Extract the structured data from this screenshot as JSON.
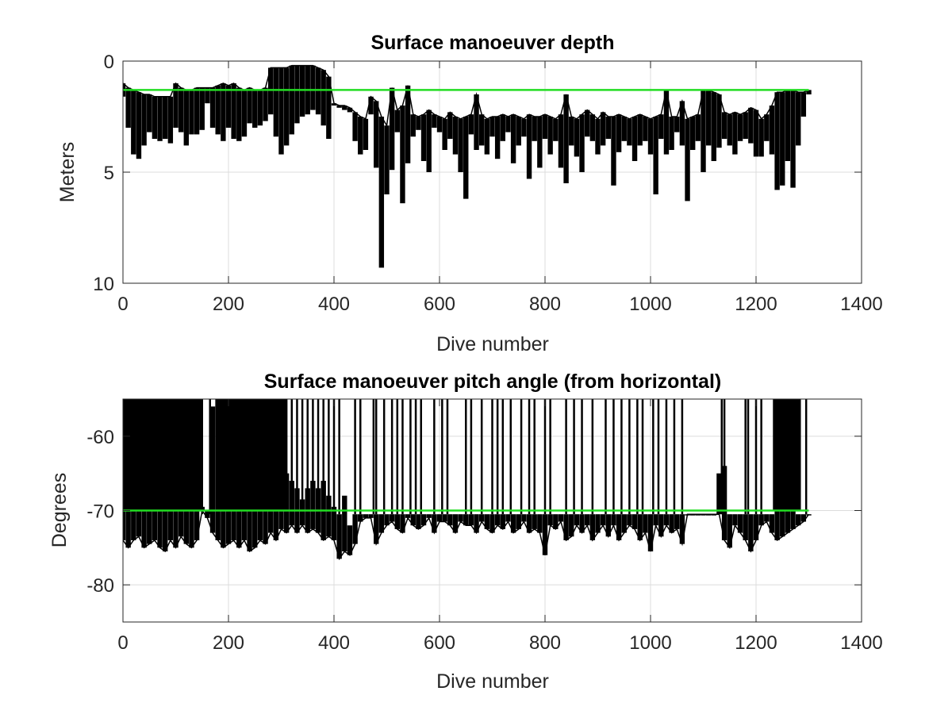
{
  "chart_data": [
    {
      "type": "line",
      "title": "Surface manoeuver depth",
      "xlabel": "Dive number",
      "ylabel": "Meters",
      "xlim": [
        0,
        1400
      ],
      "ylim": [
        0,
        10
      ],
      "y_reversed": true,
      "grid": true,
      "xticks": [
        "0",
        "200",
        "400",
        "600",
        "800",
        "1000",
        "1200",
        "1400"
      ],
      "yticks": [
        "0",
        "5",
        "10"
      ],
      "xtick_values": [
        0,
        200,
        400,
        600,
        800,
        1000,
        1200,
        1400
      ],
      "ytick_values": [
        0,
        5,
        10
      ],
      "line_color": "#000000",
      "threshold": {
        "value": 1.3,
        "x_range": [
          0,
          1300
        ],
        "color": "#22dd22"
      },
      "x": [
        0,
        10,
        20,
        30,
        40,
        50,
        60,
        70,
        80,
        90,
        100,
        110,
        120,
        130,
        140,
        150,
        160,
        170,
        180,
        190,
        200,
        210,
        220,
        230,
        240,
        250,
        260,
        270,
        280,
        290,
        300,
        310,
        320,
        330,
        340,
        350,
        360,
        370,
        380,
        390,
        400,
        410,
        420,
        430,
        440,
        450,
        460,
        470,
        480,
        490,
        500,
        510,
        520,
        530,
        540,
        550,
        560,
        570,
        580,
        590,
        600,
        610,
        620,
        630,
        640,
        650,
        660,
        670,
        680,
        690,
        700,
        710,
        720,
        730,
        740,
        750,
        760,
        770,
        780,
        790,
        800,
        810,
        820,
        830,
        840,
        850,
        860,
        870,
        880,
        890,
        900,
        910,
        920,
        930,
        940,
        950,
        960,
        970,
        980,
        990,
        1000,
        1010,
        1020,
        1030,
        1040,
        1050,
        1060,
        1070,
        1080,
        1090,
        1100,
        1110,
        1120,
        1130,
        1140,
        1150,
        1160,
        1170,
        1180,
        1190,
        1200,
        1210,
        1220,
        1230,
        1240,
        1250,
        1260,
        1270,
        1280,
        1290,
        1300
      ],
      "low": [
        1.0,
        1.2,
        1.3,
        1.4,
        1.5,
        1.5,
        1.6,
        1.6,
        1.6,
        1.6,
        1.0,
        1.2,
        1.3,
        1.3,
        1.2,
        1.2,
        1.2,
        1.2,
        1.1,
        1.0,
        1.1,
        1.0,
        1.2,
        1.3,
        1.2,
        1.3,
        1.3,
        1.2,
        0.3,
        0.3,
        0.3,
        0.3,
        0.2,
        0.2,
        0.2,
        0.2,
        0.2,
        0.3,
        0.4,
        0.7,
        1.9,
        2.0,
        2.0,
        2.1,
        2.3,
        2.5,
        2.6,
        1.6,
        1.8,
        2.5,
        2.9,
        1.2,
        2.2,
        2.0,
        1.1,
        2.4,
        2.5,
        2.4,
        2.2,
        2.4,
        2.5,
        2.6,
        2.3,
        2.5,
        2.6,
        2.5,
        2.4,
        1.5,
        2.4,
        2.6,
        2.5,
        2.5,
        2.4,
        2.5,
        2.4,
        2.5,
        2.6,
        2.4,
        2.5,
        2.5,
        2.4,
        2.5,
        2.6,
        2.4,
        1.5,
        2.5,
        2.6,
        2.4,
        2.2,
        2.4,
        2.6,
        2.3,
        2.5,
        2.5,
        2.4,
        2.5,
        2.6,
        2.5,
        2.4,
        2.5,
        2.6,
        2.5,
        2.4,
        1.3,
        2.5,
        2.5,
        1.8,
        2.6,
        2.5,
        2.4,
        1.3,
        1.3,
        1.4,
        1.5,
        2.3,
        2.4,
        2.3,
        2.4,
        2.3,
        2.1,
        2.2,
        2.6,
        2.4,
        2.0,
        1.4,
        1.4,
        1.3,
        1.3,
        1.4,
        1.4,
        1.3
      ],
      "high": [
        1.6,
        3.0,
        4.2,
        4.4,
        3.8,
        3.2,
        3.5,
        3.6,
        3.5,
        3.7,
        3.0,
        3.2,
        3.8,
        3.3,
        3.3,
        3.1,
        1.9,
        3.0,
        3.3,
        3.6,
        3.0,
        3.5,
        3.6,
        3.4,
        2.8,
        3.0,
        2.9,
        2.7,
        2.4,
        3.4,
        4.2,
        3.8,
        3.3,
        2.8,
        2.5,
        2.4,
        2.2,
        2.4,
        2.9,
        3.5,
        2.0,
        2.1,
        2.2,
        2.3,
        3.6,
        4.2,
        4.0,
        2.4,
        4.8,
        9.3,
        6.0,
        4.9,
        3.2,
        6.4,
        4.6,
        3.4,
        3.1,
        4.5,
        5.0,
        3.0,
        3.2,
        4.0,
        3.5,
        4.2,
        5.0,
        6.2,
        3.3,
        4.0,
        3.8,
        4.2,
        3.4,
        4.4,
        3.6,
        3.2,
        4.6,
        3.8,
        3.4,
        5.3,
        3.6,
        4.8,
        3.5,
        4.2,
        3.6,
        4.8,
        5.5,
        3.8,
        4.3,
        5.0,
        3.4,
        3.6,
        4.2,
        3.8,
        3.5,
        5.6,
        4.1,
        3.6,
        3.8,
        4.5,
        3.8,
        3.6,
        4.2,
        6.0,
        3.5,
        4.2,
        4.0,
        3.2,
        3.8,
        6.3,
        4.0,
        3.6,
        5.0,
        3.8,
        4.5,
        3.9,
        3.5,
        3.8,
        4.2,
        3.6,
        3.5,
        3.7,
        4.3,
        4.3,
        3.6,
        4.2,
        5.8,
        5.6,
        4.5,
        5.7,
        3.8,
        2.5,
        1.5
      ]
    },
    {
      "type": "line",
      "title": "Surface manoeuver pitch angle (from horizontal)",
      "xlabel": "Dive number",
      "ylabel": "Degrees",
      "xlim": [
        0,
        1400
      ],
      "ylim": [
        -85,
        -55
      ],
      "grid": true,
      "xticks": [
        "0",
        "200",
        "400",
        "600",
        "800",
        "1000",
        "1200",
        "1400"
      ],
      "yticks": [
        "-60",
        "-70",
        "-80"
      ],
      "xtick_values": [
        0,
        200,
        400,
        600,
        800,
        1000,
        1200,
        1400
      ],
      "ytick_values": [
        -60,
        -70,
        -80
      ],
      "line_color": "#000000",
      "threshold": {
        "value": -70,
        "x_range": [
          0,
          1300
        ],
        "color": "#22dd22"
      },
      "dense_regions": [
        {
          "x_range": [
            0,
            150
          ],
          "y_range": [
            -55,
            -70
          ]
        },
        {
          "x_range": [
            175,
            310
          ],
          "y_range": [
            -55,
            -70
          ]
        },
        {
          "x_range": [
            1232,
            1285
          ],
          "y_range": [
            -55,
            -70
          ]
        }
      ],
      "spikes": [
        150,
        165,
        310,
        320,
        330,
        340,
        350,
        360,
        370,
        380,
        390,
        400,
        410,
        440,
        450,
        475,
        480,
        495,
        510,
        520,
        530,
        545,
        555,
        565,
        590,
        605,
        615,
        650,
        660,
        680,
        700,
        710,
        720,
        735,
        755,
        770,
        780,
        800,
        810,
        840,
        855,
        870,
        890,
        915,
        930,
        945,
        960,
        975,
        985,
        1005,
        1015,
        1030,
        1045,
        1060,
        1135,
        1140,
        1180,
        1185,
        1200,
        1210,
        1295
      ],
      "x": [
        0,
        10,
        20,
        30,
        40,
        50,
        60,
        70,
        80,
        90,
        100,
        110,
        120,
        130,
        140,
        150,
        160,
        170,
        180,
        190,
        200,
        210,
        220,
        230,
        240,
        250,
        260,
        270,
        280,
        290,
        300,
        310,
        320,
        330,
        340,
        350,
        360,
        370,
        380,
        390,
        400,
        410,
        420,
        430,
        440,
        450,
        460,
        470,
        480,
        490,
        500,
        510,
        520,
        530,
        540,
        550,
        560,
        570,
        580,
        590,
        600,
        610,
        620,
        630,
        640,
        650,
        660,
        670,
        680,
        690,
        700,
        710,
        720,
        730,
        740,
        750,
        760,
        770,
        780,
        790,
        800,
        810,
        820,
        830,
        840,
        850,
        860,
        870,
        880,
        890,
        900,
        910,
        920,
        930,
        940,
        950,
        960,
        970,
        980,
        990,
        1000,
        1010,
        1020,
        1030,
        1040,
        1050,
        1060,
        1070,
        1080,
        1090,
        1100,
        1110,
        1120,
        1130,
        1140,
        1150,
        1160,
        1170,
        1180,
        1190,
        1200,
        1210,
        1220,
        1230,
        1240,
        1250,
        1260,
        1270,
        1280,
        1290,
        1300
      ],
      "low": [
        -74.0,
        -75.0,
        -74.0,
        -73.5,
        -75.0,
        -74.5,
        -74.0,
        -75.0,
        -75.5,
        -74.0,
        -75.0,
        -73.5,
        -74.5,
        -75.0,
        -74.0,
        -70.0,
        -71.0,
        -73.0,
        -74.0,
        -75.0,
        -74.5,
        -74.0,
        -75.0,
        -74.0,
        -75.5,
        -75.0,
        -74.0,
        -74.5,
        -73.0,
        -74.0,
        -72.5,
        -73.0,
        -72.0,
        -73.0,
        -72.0,
        -73.0,
        -72.5,
        -73.0,
        -74.0,
        -73.5,
        -74.0,
        -76.5,
        -75.5,
        -76.0,
        -74.5,
        -71.5,
        -71.0,
        -71.0,
        -74.5,
        -73.0,
        -72.0,
        -71.5,
        -72.5,
        -73.0,
        -71.0,
        -72.0,
        -72.5,
        -72.0,
        -71.0,
        -73.0,
        -71.5,
        -71.5,
        -72.0,
        -73.0,
        -71.5,
        -72.0,
        -72.0,
        -73.0,
        -71.5,
        -72.5,
        -73.0,
        -72.0,
        -72.5,
        -71.5,
        -73.0,
        -72.5,
        -71.5,
        -73.0,
        -72.5,
        -73.0,
        -76.0,
        -72.0,
        -72.5,
        -71.5,
        -74.0,
        -73.5,
        -72.0,
        -73.0,
        -72.0,
        -74.0,
        -73.0,
        -72.0,
        -73.5,
        -72.0,
        -74.0,
        -73.0,
        -72.0,
        -72.5,
        -74.0,
        -73.0,
        -75.5,
        -72.0,
        -73.5,
        -72.0,
        -73.0,
        -72.5,
        -74.5,
        -70.5,
        -70.5,
        -70.5,
        -70.5,
        -70.5,
        -70.5,
        -70.5,
        -74.0,
        -75.0,
        -72.0,
        -73.0,
        -74.0,
        -75.5,
        -74.0,
        -72.0,
        -71.5,
        -73.0,
        -74.0,
        -73.5,
        -73.0,
        -72.5,
        -72.0,
        -71.5,
        -70.5
      ],
      "high": [
        -56.0,
        -56.0,
        -55.0,
        -55.0,
        -55.0,
        -55.0,
        -55.0,
        -55.0,
        -55.0,
        -55.0,
        -55.0,
        -55.0,
        -55.0,
        -55.0,
        -55.0,
        -69.5,
        -70.0,
        -56.0,
        -55.0,
        -55.0,
        -55.0,
        -55.0,
        -55.0,
        -55.0,
        -55.0,
        -55.0,
        -55.0,
        -55.0,
        -55.0,
        -55.0,
        -55.0,
        -65.0,
        -66.0,
        -67.0,
        -68.5,
        -67.0,
        -66.0,
        -67.0,
        -66.0,
        -68.0,
        -69.5,
        -70.5,
        -68.0,
        -72.0,
        -70.5,
        -70.5,
        -70.5,
        -70.5,
        -70.5,
        -70.5,
        -70.5,
        -70.5,
        -70.5,
        -70.5,
        -70.5,
        -70.5,
        -70.5,
        -70.5,
        -70.5,
        -70.5,
        -70.5,
        -70.5,
        -70.5,
        -70.5,
        -70.5,
        -70.5,
        -70.5,
        -70.5,
        -70.5,
        -70.5,
        -70.5,
        -70.5,
        -70.5,
        -70.5,
        -70.5,
        -70.5,
        -70.5,
        -70.5,
        -70.5,
        -70.5,
        -70.5,
        -70.5,
        -70.5,
        -70.5,
        -70.5,
        -70.5,
        -70.5,
        -70.5,
        -70.5,
        -70.5,
        -70.5,
        -70.5,
        -70.5,
        -70.5,
        -70.5,
        -70.5,
        -70.5,
        -70.5,
        -70.5,
        -70.5,
        -70.5,
        -70.5,
        -70.5,
        -70.5,
        -70.5,
        -70.5,
        -70.5,
        -70.5,
        -70.5,
        -70.5,
        -70.5,
        -70.5,
        -70.5,
        -65.0,
        -64.0,
        -70.5,
        -70.5,
        -70.5,
        -70.5,
        -70.5,
        -70.5,
        -70.5,
        -70.5,
        -70.5,
        -62.0,
        -60.0,
        -58.0,
        -59.0,
        -70.5,
        -70.5,
        -70.5
      ]
    }
  ]
}
